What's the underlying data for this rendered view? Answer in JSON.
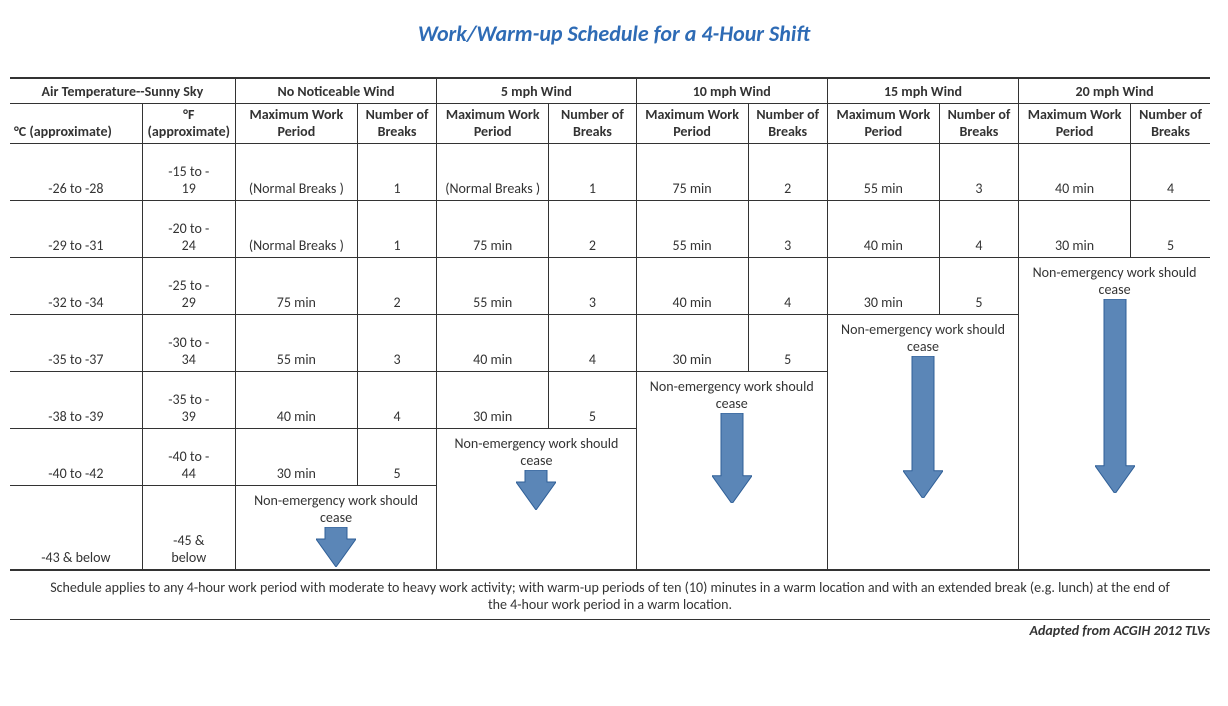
{
  "title": {
    "text": "Work/Warm-up Schedule for a 4-Hour Shift",
    "color": "#2e6bb5"
  },
  "headers": {
    "air_temp_group": "Air Temperature--Sunny Sky",
    "deg_f": "°F",
    "deg_c": "°C (approximate)",
    "approximate": "(approximate)",
    "wind": [
      "No Noticeable Wind",
      "5 mph Wind",
      "10 mph Wind",
      "15 mph Wind",
      "20 mph Wind"
    ],
    "max_work": "Maximum Work Period",
    "num_breaks": "Number of Breaks",
    "num_breaks_alt": "Number of Breaks"
  },
  "cease_text": "Non-emergency work should cease",
  "footer": "Schedule applies to any 4-hour work period with moderate to heavy work activity; with warm-up periods of ten (10) minutes in a warm location and with an extended break (e.g. lunch) at the end of the 4-hour work period in a warm location.",
  "attribution": "Adapted from ACGIH 2012 TLVs",
  "rows": [
    {
      "c": "-26 to -28",
      "f": "-15 to -19",
      "w": [
        {
          "work": "(Normal Breaks )",
          "breaks": "1",
          "merged": false
        },
        {
          "work": "(Normal Breaks )",
          "breaks": "1",
          "merged": false
        },
        {
          "work": "75 min",
          "breaks": "2"
        },
        {
          "work": "55 min",
          "breaks": "3"
        },
        {
          "work": "40 min",
          "breaks": "4"
        }
      ]
    },
    {
      "c": "-29 to -31",
      "f": "-20 to -24",
      "w": [
        {
          "work": "(Normal Breaks )",
          "breaks": "1",
          "merged": false
        },
        {
          "work": "75 min",
          "breaks": "2"
        },
        {
          "work": "55 min",
          "breaks": "3"
        },
        {
          "work": "40 min",
          "breaks": "4"
        },
        {
          "work": "30 min",
          "breaks": "5"
        }
      ]
    },
    {
      "c": "-32 to -34",
      "f": "-25 to -29",
      "w": [
        {
          "work": "75 min",
          "breaks": "2"
        },
        {
          "work": "55 min",
          "breaks": "3"
        },
        {
          "work": "40 min",
          "breaks": "4"
        },
        {
          "work": "30 min",
          "breaks": "5"
        },
        {
          "cease": true
        }
      ]
    },
    {
      "c": "-35 to -37",
      "f": "-30 to -34",
      "w": [
        {
          "work": "55 min",
          "breaks": "3"
        },
        {
          "work": "40 min",
          "breaks": "4"
        },
        {
          "work": "30 min",
          "breaks": "5"
        },
        {
          "cease": true
        },
        null
      ]
    },
    {
      "c": "-38 to -39",
      "f": "-35 to -39",
      "w": [
        {
          "work": "40 min",
          "breaks": "4"
        },
        {
          "work": "30 min",
          "breaks": "5"
        },
        {
          "cease": true
        },
        null,
        null
      ]
    },
    {
      "c": "-40 to -42",
      "f": "-40 to -44",
      "w": [
        {
          "work": "30 min",
          "breaks": "5"
        },
        {
          "cease": true
        },
        null,
        null,
        null
      ]
    },
    {
      "c": "-43 & below",
      "f": "-45 & below",
      "w": [
        {
          "cease": true
        },
        null,
        null,
        null,
        null
      ]
    }
  ],
  "arrow": {
    "fill": "#5b86b7",
    "stroke": "#2f5f97",
    "stroke_width": 1
  },
  "font": {
    "body_color": "#333333"
  }
}
